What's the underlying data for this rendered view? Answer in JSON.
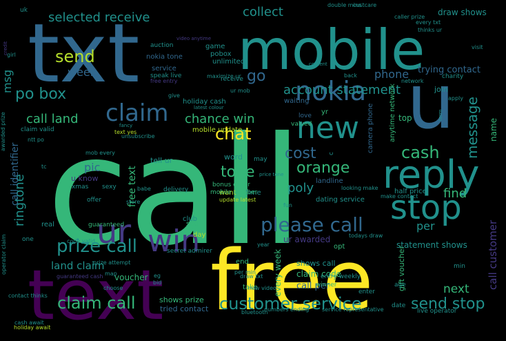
{
  "palette": {
    "background": "#000000",
    "yellow": "#fde725",
    "lime": "#b5de2b",
    "green": "#35b779",
    "teal": "#21918c",
    "blue": "#31688e",
    "indigo": "#443983",
    "purple": "#440154"
  },
  "words": [
    {
      "text": "call",
      "size": 216,
      "color": "green"
    },
    {
      "text": "free",
      "size": 120,
      "color": "yellow"
    },
    {
      "text": "txt",
      "size": 118,
      "color": "blue"
    },
    {
      "text": "text",
      "size": 100,
      "color": "purple"
    },
    {
      "text": "mobile",
      "size": 80,
      "color": "teal"
    },
    {
      "text": "u",
      "size": 110,
      "color": "blue"
    },
    {
      "text": "reply",
      "size": 56,
      "color": "teal"
    },
    {
      "text": "stop",
      "size": 48,
      "color": "teal"
    },
    {
      "text": "new",
      "size": 44,
      "color": "teal"
    },
    {
      "text": "nokia",
      "size": 38,
      "color": "blue"
    },
    {
      "text": "claim",
      "size": 34,
      "color": "blue"
    },
    {
      "text": "ur",
      "size": 48,
      "color": "indigo"
    },
    {
      "text": "win",
      "size": 44,
      "color": "indigo"
    },
    {
      "text": "please call",
      "size": 28,
      "color": "blue"
    },
    {
      "text": "prize call",
      "size": 26,
      "color": "teal"
    },
    {
      "text": "customer service",
      "size": 24,
      "color": "teal"
    },
    {
      "text": "claim call",
      "size": 24,
      "color": "green"
    },
    {
      "text": "send stop",
      "size": 22,
      "color": "teal"
    },
    {
      "text": "chat",
      "size": 24,
      "color": "yellow"
    },
    {
      "text": "send",
      "size": 24,
      "color": "lime"
    },
    {
      "text": "cash",
      "size": 24,
      "color": "green"
    },
    {
      "text": "orange",
      "size": 22,
      "color": "green"
    },
    {
      "text": "tone",
      "size": 22,
      "color": "green"
    },
    {
      "text": "cost",
      "size": 22,
      "color": "blue"
    },
    {
      "text": "po box",
      "size": 22,
      "color": "teal"
    },
    {
      "text": "go",
      "size": 22,
      "color": "blue"
    },
    {
      "text": "collect",
      "size": 18,
      "color": "teal"
    },
    {
      "text": "selected receive",
      "size": 18,
      "color": "teal"
    },
    {
      "text": "account statement",
      "size": 18,
      "color": "teal"
    },
    {
      "text": "chance win",
      "size": 18,
      "color": "green"
    },
    {
      "text": "call land",
      "size": 18,
      "color": "green"
    },
    {
      "text": "message",
      "size": 20,
      "color": "teal"
    },
    {
      "text": "ringtone",
      "size": 18,
      "color": "teal"
    },
    {
      "text": "call identifier",
      "size": 14,
      "color": "blue"
    },
    {
      "text": "call customer",
      "size": 15,
      "color": "indigo"
    },
    {
      "text": "free text",
      "size": 14,
      "color": "green"
    },
    {
      "text": "phone",
      "size": 16,
      "color": "blue"
    },
    {
      "text": "poly",
      "size": 18,
      "color": "teal"
    },
    {
      "text": "find",
      "size": 18,
      "color": "green"
    },
    {
      "text": "next",
      "size": 17,
      "color": "green"
    },
    {
      "text": "per",
      "size": 16,
      "color": "teal"
    },
    {
      "text": "msg",
      "size": 16,
      "color": "teal"
    },
    {
      "text": "week",
      "size": 16,
      "color": "blue"
    },
    {
      "text": "pic",
      "size": 16,
      "color": "blue"
    },
    {
      "text": "land claim",
      "size": 15,
      "color": "teal"
    },
    {
      "text": "trying contact",
      "size": 13,
      "color": "blue"
    },
    {
      "text": "draw shows",
      "size": 12,
      "color": "teal"
    },
    {
      "text": "ur awarded",
      "size": 12,
      "color": "indigo"
    },
    {
      "text": "statement shows",
      "size": 12,
      "color": "teal"
    },
    {
      "text": "call per",
      "size": 13,
      "color": "blue"
    },
    {
      "text": "claim code",
      "size": 12,
      "color": "green"
    },
    {
      "text": "shows call",
      "size": 11,
      "color": "teal"
    },
    {
      "text": "every week",
      "size": 12,
      "color": "green"
    },
    {
      "text": "gift voucher",
      "size": 11,
      "color": "green"
    },
    {
      "text": "voucher",
      "size": 12,
      "color": "green"
    },
    {
      "text": "shows prize",
      "size": 11,
      "color": "green"
    },
    {
      "text": "tried contact",
      "size": 11,
      "color": "blue"
    },
    {
      "text": "holiday cash",
      "size": 10,
      "color": "teal"
    },
    {
      "text": "mobile update",
      "size": 10,
      "color": "lime"
    },
    {
      "text": "u know",
      "size": 11,
      "color": "indigo"
    },
    {
      "text": "tell ur",
      "size": 11,
      "color": "teal"
    },
    {
      "text": "half price",
      "size": 10,
      "color": "teal"
    },
    {
      "text": "dating service",
      "size": 10,
      "color": "teal"
    },
    {
      "text": "camera phone",
      "size": 10,
      "color": "blue"
    },
    {
      "text": "anytime network",
      "size": 10,
      "color": "green"
    },
    {
      "text": "landline",
      "size": 10,
      "color": "blue"
    },
    {
      "text": "word",
      "size": 11,
      "color": "teal"
    },
    {
      "text": "name",
      "size": 12,
      "color": "green"
    },
    {
      "text": "top",
      "size": 12,
      "color": "green"
    },
    {
      "text": "join",
      "size": 11,
      "color": "teal"
    },
    {
      "text": "want",
      "size": 10,
      "color": "lime"
    },
    {
      "text": "time",
      "size": 10,
      "color": "teal"
    },
    {
      "text": "bonus caller",
      "size": 9,
      "color": "green"
    },
    {
      "text": "mobile number",
      "size": 9,
      "color": "green"
    },
    {
      "text": "nokia tone",
      "size": 10,
      "color": "blue"
    },
    {
      "text": "club",
      "size": 10,
      "color": "teal"
    },
    {
      "text": "game",
      "size": 10,
      "color": "teal"
    },
    {
      "text": "pobox",
      "size": 10,
      "color": "teal"
    },
    {
      "text": "unlimited",
      "size": 10,
      "color": "teal"
    },
    {
      "text": "waiting",
      "size": 10,
      "color": "blue"
    },
    {
      "text": "love",
      "size": 9,
      "color": "blue"
    },
    {
      "text": "yr",
      "size": 10,
      "color": "green"
    },
    {
      "text": "valued",
      "size": 9,
      "color": "green"
    },
    {
      "text": "see",
      "size": 10,
      "color": "green"
    },
    {
      "text": "day",
      "size": 10,
      "color": "lime"
    },
    {
      "text": "end",
      "size": 10,
      "color": "green"
    },
    {
      "text": "take",
      "size": 10,
      "color": "green"
    },
    {
      "text": "opt",
      "size": 10,
      "color": "green"
    },
    {
      "text": "real",
      "size": 10,
      "color": "teal"
    },
    {
      "text": "guaranteed",
      "size": 9,
      "color": "green"
    },
    {
      "text": "xmas",
      "size": 9,
      "color": "teal"
    },
    {
      "text": "sexy",
      "size": 9,
      "color": "teal"
    },
    {
      "text": "offer",
      "size": 9,
      "color": "teal"
    },
    {
      "text": "delivery",
      "size": 9,
      "color": "teal"
    },
    {
      "text": "may",
      "size": 9,
      "color": "teal"
    },
    {
      "text": "secret admirer",
      "size": 9,
      "color": "teal"
    },
    {
      "text": "winner",
      "size": 9,
      "color": "green"
    },
    {
      "text": "entry weekly",
      "size": 9,
      "color": "teal"
    },
    {
      "text": "enter",
      "size": 9,
      "color": "teal"
    },
    {
      "text": "date",
      "size": 9,
      "color": "teal"
    },
    {
      "text": "min",
      "size": 9,
      "color": "teal"
    },
    {
      "text": "age",
      "size": 9,
      "color": "teal"
    },
    {
      "text": "live operator",
      "size": 9,
      "color": "teal"
    },
    {
      "text": "network",
      "size": 8,
      "color": "teal"
    },
    {
      "text": "charity",
      "size": 9,
      "color": "teal"
    },
    {
      "text": "visit",
      "size": 8,
      "color": "teal"
    },
    {
      "text": "every txt",
      "size": 8,
      "color": "teal"
    },
    {
      "text": "thinks ur",
      "size": 8,
      "color": "teal"
    },
    {
      "text": "caller prize",
      "size": 8,
      "color": "teal"
    },
    {
      "text": "custcare",
      "size": 8,
      "color": "teal"
    },
    {
      "text": "double mins",
      "size": 8,
      "color": "teal"
    },
    {
      "text": "auction",
      "size": 9,
      "color": "teal"
    },
    {
      "text": "service",
      "size": 10,
      "color": "blue"
    },
    {
      "text": "speak live",
      "size": 9,
      "color": "teal"
    },
    {
      "text": "free entry",
      "size": 8,
      "color": "indigo"
    },
    {
      "text": "maximize ur",
      "size": 8,
      "color": "teal"
    },
    {
      "text": "receive",
      "size": 9,
      "color": "teal"
    },
    {
      "text": "ur mob",
      "size": 8,
      "color": "teal"
    },
    {
      "text": "latest colour",
      "size": 7,
      "color": "teal"
    },
    {
      "text": "give",
      "size": 8,
      "color": "teal"
    },
    {
      "text": "text yes",
      "size": 8,
      "color": "lime"
    },
    {
      "text": "unsubscribe",
      "size": 8,
      "color": "teal"
    },
    {
      "text": "uk",
      "size": 9,
      "color": "teal"
    },
    {
      "text": "claim valid",
      "size": 9,
      "color": "teal"
    },
    {
      "text": "awarded prize",
      "size": 8,
      "color": "teal"
    },
    {
      "text": "ntt po",
      "size": 8,
      "color": "teal"
    },
    {
      "text": "tc",
      "size": 8,
      "color": "teal"
    },
    {
      "text": "mob every",
      "size": 8,
      "color": "teal"
    },
    {
      "text": "babe",
      "size": 8,
      "color": "teal"
    },
    {
      "text": "store",
      "size": 8,
      "color": "teal"
    },
    {
      "text": "one",
      "size": 9,
      "color": "teal"
    },
    {
      "text": "code valid",
      "size": 8,
      "color": "teal"
    },
    {
      "text": "guaranteed cash",
      "size": 8,
      "color": "indigo"
    },
    {
      "text": "holiday await",
      "size": 8,
      "color": "lime"
    },
    {
      "text": "cash await",
      "size": 8,
      "color": "teal"
    },
    {
      "text": "contact thinks",
      "size": 8,
      "color": "teal"
    },
    {
      "text": "operator claim",
      "size": 8,
      "color": "teal"
    },
    {
      "text": "prize attempt",
      "size": 8,
      "color": "teal"
    },
    {
      "text": "map",
      "size": 8,
      "color": "teal"
    },
    {
      "text": "eg",
      "size": 8,
      "color": "teal"
    },
    {
      "text": "bid",
      "size": 8,
      "color": "teal"
    },
    {
      "text": "choose",
      "size": 8,
      "color": "teal"
    },
    {
      "text": "per min",
      "size": 8,
      "color": "teal"
    },
    {
      "text": "draw txt",
      "size": 8,
      "color": "teal"
    },
    {
      "text": "new video",
      "size": 8,
      "color": "teal"
    },
    {
      "text": "bluetooth",
      "size": 8,
      "color": "teal"
    },
    {
      "text": "numbers ending",
      "size": 8,
      "color": "teal"
    },
    {
      "text": "service representative",
      "size": 8,
      "color": "teal"
    },
    {
      "text": "todays draw",
      "size": 8,
      "color": "teal"
    },
    {
      "text": "year",
      "size": 8,
      "color": "teal"
    },
    {
      "text": "make contact",
      "size": 8,
      "color": "teal"
    },
    {
      "text": "looking make",
      "size": 8,
      "color": "teal"
    },
    {
      "text": "price tone",
      "size": 7,
      "color": "teal"
    },
    {
      "text": "update latest",
      "size": 8,
      "color": "lime"
    },
    {
      "text": "fun",
      "size": 8,
      "color": "teal"
    },
    {
      "text": "content",
      "size": 7,
      "color": "teal"
    },
    {
      "text": "back",
      "size": 8,
      "color": "teal"
    },
    {
      "text": "c",
      "size": 9,
      "color": "teal"
    },
    {
      "text": "apply",
      "size": 8,
      "color": "teal"
    },
    {
      "text": "term",
      "size": 7,
      "color": "teal"
    },
    {
      "text": "video anytime",
      "size": 7,
      "color": "indigo"
    },
    {
      "text": "credit",
      "size": 7,
      "color": "indigo"
    },
    {
      "text": "girl",
      "size": 8,
      "color": "teal"
    },
    {
      "text": "fancy",
      "size": 7,
      "color": "teal"
    }
  ]
}
